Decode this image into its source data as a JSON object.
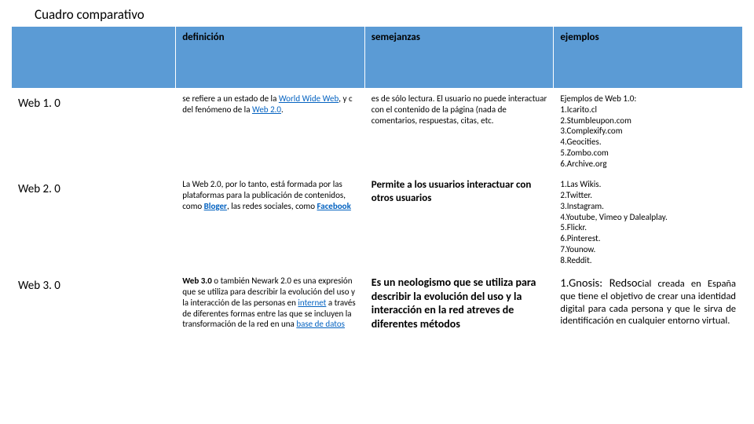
{
  "title": "Cuadro comparativo",
  "headers": {
    "c0": "",
    "c1": "definición",
    "c2": "semejanzas",
    "c3": "ejemplos"
  },
  "rows": {
    "web1": {
      "label": "Web 1. 0",
      "def_pre": " se refiere a un estado de la ",
      "def_link1": "World Wide Web",
      "def_mid": ", y c del fenómeno de la ",
      "def_link2": "Web 2.0",
      "def_post": ".",
      "sem": "es de sólo lectura. El usuario no puede interactuar con el contenido de la página (nada de comentarios, respuestas, citas, etc.",
      "ej_head": "Ejemplos de Web 1.0:",
      "ej": [
        "1.Icarito.cl",
        "2.Stumbleupon.com",
        "3.Complexify.com",
        "4.Geocities.",
        "5.Zombo.com",
        "6.Archive.org"
      ]
    },
    "web2": {
      "label": "Web 2. 0",
      "def_a": "La Web 2.0, por lo tanto, está formada por las plataformas para la publicación de contenidos, como ",
      "def_link1": "Bloger",
      "def_b": ", las redes sociales, como ",
      "def_link2": "Facebook",
      "sem": "Permite a los usuarios interactuar con otros usuarios",
      "ej": [
        "1.Las Wikis.",
        "2.Twitter.",
        "3.Instagram.",
        "4.Youtube, Vimeo y Dalealplay.",
        "5.Flickr.",
        "6.Pinterest.",
        "7.Younow.",
        "8.Reddit."
      ]
    },
    "web3": {
      "label": "Web 3. 0",
      "def_a": "Web 3.0",
      "def_b": " o también Newark 2.0 es una expresión que se utiliza para describir la evolución del uso y la interacción de las personas en ",
      "def_link1": "internet",
      "def_c": " a través de diferentes formas entre las que se incluyen la transformación de la red en una ",
      "def_link2": "base de datos",
      "sem": "Es un neologismo que se utiliza para describir la evolución del uso y la interacción en la red atreves de diferentes métodos",
      "ej_lead": "1.Gnosis: Redsoc",
      "ej_rest": "ial creada en España que tiene el objetivo de crear una identidad digital para cada persona y que le sirva de identificación en cualquier entorno virtual."
    }
  }
}
